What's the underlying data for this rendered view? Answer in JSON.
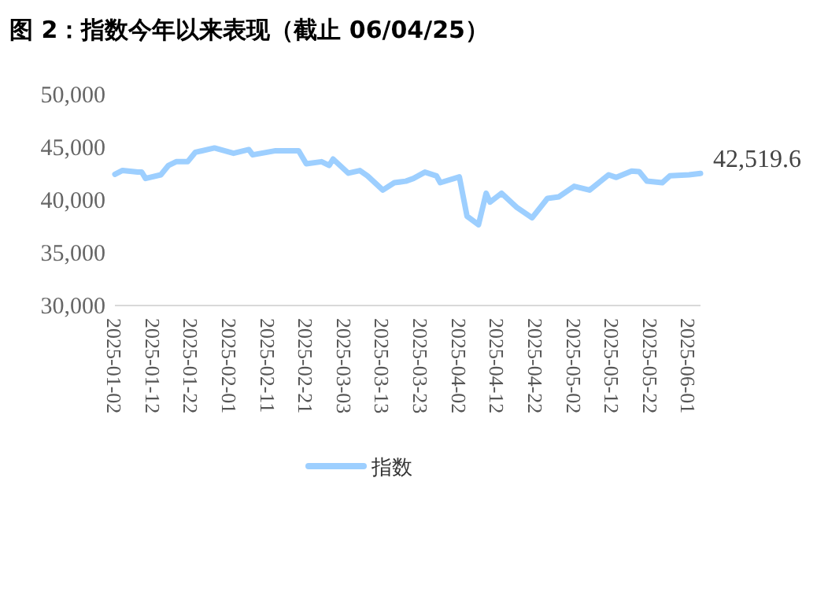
{
  "chart_data": {
    "type": "line",
    "title": "图 2：指数今年以来表现（截止 06/04/25）",
    "xlim": [
      "2025-01-02",
      "2025-06-04"
    ],
    "xticks": [
      "2025-01-02",
      "2025-01-12",
      "2025-01-22",
      "2025-02-01",
      "2025-02-11",
      "2025-02-21",
      "2025-03-03",
      "2025-03-13",
      "2025-03-23",
      "2025-04-02",
      "2025-04-12",
      "2025-04-22",
      "2025-05-02",
      "2025-05-12",
      "2025-05-22",
      "2025-06-01"
    ],
    "ylim": [
      30000,
      50000
    ],
    "yticks": [
      {
        "value": 30000,
        "label": "30,000"
      },
      {
        "value": 35000,
        "label": "35,000"
      },
      {
        "value": 40000,
        "label": "40,000"
      },
      {
        "value": 45000,
        "label": "45,000"
      },
      {
        "value": 50000,
        "label": "50,000"
      }
    ],
    "grid": false,
    "legend": "bottom",
    "line_style": "solid",
    "annotations": [
      {
        "text": "42,519.6",
        "x": "2025-06-04",
        "y": 42519.6
      }
    ],
    "series": [
      {
        "name": "指数",
        "color": "#9dcfff",
        "x": [
          "2025-01-02",
          "2025-01-04",
          "2025-01-08",
          "2025-01-09",
          "2025-01-10",
          "2025-01-14",
          "2025-01-16",
          "2025-01-18",
          "2025-01-21",
          "2025-01-23",
          "2025-01-28",
          "2025-02-02",
          "2025-02-06",
          "2025-02-07",
          "2025-02-13",
          "2025-02-19",
          "2025-02-21",
          "2025-02-25",
          "2025-02-27",
          "2025-02-28",
          "2025-03-04",
          "2025-03-07",
          "2025-03-09",
          "2025-03-13",
          "2025-03-16",
          "2025-03-19",
          "2025-03-21",
          "2025-03-24",
          "2025-03-27",
          "2025-03-28",
          "2025-04-02",
          "2025-04-04",
          "2025-04-07",
          "2025-04-09",
          "2025-04-10",
          "2025-04-13",
          "2025-04-17",
          "2025-04-21",
          "2025-04-25",
          "2025-04-28",
          "2025-05-02",
          "2025-05-06",
          "2025-05-11",
          "2025-05-13",
          "2025-05-17",
          "2025-05-19",
          "2025-05-21",
          "2025-05-25",
          "2025-05-27",
          "2025-06-01",
          "2025-06-04"
        ],
        "values": [
          42430,
          42800,
          42650,
          42650,
          42040,
          42390,
          43280,
          43630,
          43630,
          44520,
          44930,
          44430,
          44780,
          44280,
          44670,
          44670,
          43430,
          43630,
          43280,
          43880,
          42540,
          42790,
          42290,
          40940,
          41640,
          41780,
          42040,
          42640,
          42290,
          41640,
          42190,
          38460,
          37660,
          40640,
          39800,
          40640,
          39300,
          38310,
          40150,
          40300,
          41300,
          40940,
          42390,
          42140,
          42740,
          42690,
          41790,
          41640,
          42290,
          42390,
          42519.6
        ]
      }
    ]
  }
}
